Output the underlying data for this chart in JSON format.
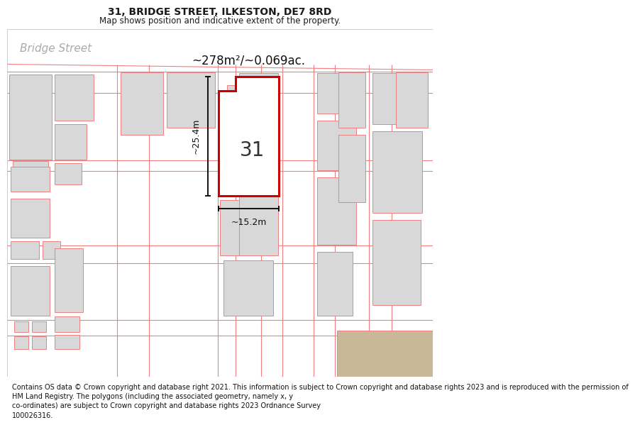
{
  "title": "31, BRIDGE STREET, ILKESTON, DE7 8RD",
  "subtitle": "Map shows position and indicative extent of the property.",
  "footer": "Contains OS data © Crown copyright and database right 2021. This information is subject to Crown copyright and database rights 2023 and is reproduced with the permission of\nHM Land Registry. The polygons (including the associated geometry, namely x, y\nco-ordinates) are subject to Crown copyright and database rights 2023 Ordnance Survey\n100026316.",
  "street_label": "Bridge Street",
  "area_label": "~278m²/~0.069ac.",
  "number_label": "31",
  "width_label": "~15.2m",
  "height_label": "~25.4m",
  "map_bg": "#efefef",
  "building_fill": "#d8d8d8",
  "building_edge": "#f08080",
  "highlight_fill": "#ffffff",
  "highlight_edge": "#cc0000",
  "title_fontsize": 10,
  "subtitle_fontsize": 8.5,
  "footer_fontsize": 7.0,
  "street_label_fontsize": 11,
  "area_label_fontsize": 12,
  "number_label_fontsize": 20,
  "measure_fontsize": 9,
  "fig_width": 6.0,
  "fig_height": 6.25
}
